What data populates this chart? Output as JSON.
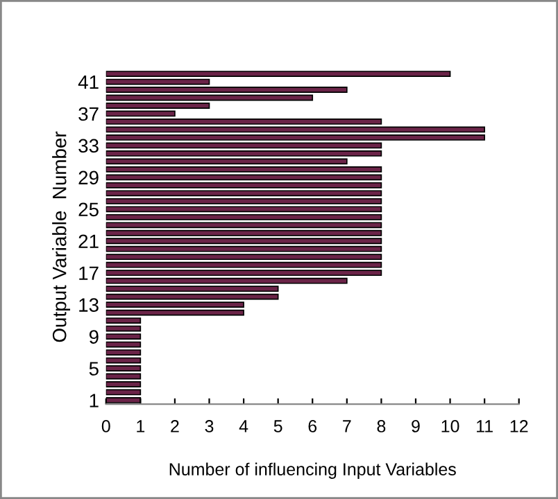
{
  "chart_data": {
    "type": "bar",
    "orientation": "horizontal",
    "xlabel": "Number of influencing Input Variables",
    "ylabel": "Output Variable  Number",
    "categories": [
      null,
      "41",
      null,
      null,
      null,
      "37",
      null,
      null,
      null,
      "33",
      null,
      null,
      null,
      "29",
      null,
      null,
      null,
      "25",
      null,
      null,
      null,
      "21",
      null,
      null,
      null,
      "17",
      null,
      null,
      null,
      "13",
      null,
      null,
      null,
      "9",
      null,
      null,
      null,
      "5",
      null,
      null,
      null,
      "1"
    ],
    "values": [
      10,
      3,
      7,
      6,
      3,
      2,
      8,
      11,
      11,
      8,
      8,
      7,
      8,
      8,
      8,
      8,
      8,
      8,
      8,
      8,
      8,
      8,
      8,
      8,
      8,
      8,
      7,
      5,
      5,
      4,
      4,
      1,
      1,
      1,
      1,
      1,
      1,
      1,
      1,
      1,
      1,
      1
    ],
    "color": "#6b2448",
    "xlim": [
      0,
      12
    ],
    "xticks": [
      0,
      1,
      2,
      3,
      4,
      5,
      6,
      7,
      8,
      9,
      10,
      11,
      12
    ],
    "grid": false,
    "legend": false
  }
}
